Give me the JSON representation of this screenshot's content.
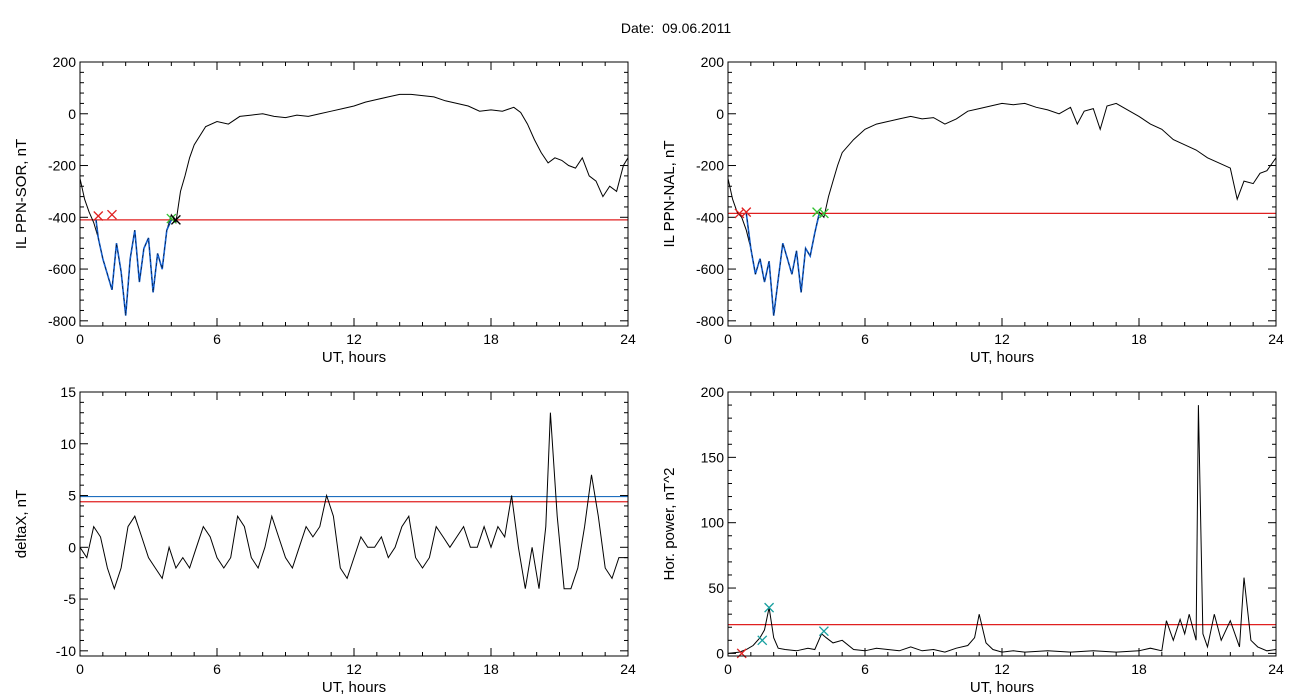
{
  "figure": {
    "date_title": "Date:  09.06.2011"
  },
  "colors": {
    "trace": "#000000",
    "threshold_red": "#e02020",
    "threshold_blue": "#1f6fbf",
    "highlight_blue": "#1560d0",
    "marker_red": "#e02020",
    "marker_green": "#30c030",
    "marker_cyan": "#18a0a0"
  },
  "chart_data": [
    {
      "id": "ppn-sor",
      "type": "line",
      "xlabel": "UT, hours",
      "ylabel": "IL PPN-SOR, nT",
      "xlim": [
        0,
        24
      ],
      "ylim": [
        -820,
        200
      ],
      "xticks": [
        0,
        6,
        12,
        18,
        24
      ],
      "yticks": [
        -800,
        -600,
        -400,
        -200,
        0,
        200
      ],
      "thresholds": [
        {
          "value": -410,
          "color": "red"
        }
      ],
      "series": [
        {
          "color": "black",
          "x": [
            0,
            0.2,
            0.4,
            0.6,
            0.8,
            1.0,
            1.2,
            1.4,
            1.6,
            1.8,
            2.0,
            2.2,
            2.4,
            2.6,
            2.8,
            3.0,
            3.2,
            3.4,
            3.6,
            3.8,
            4.0,
            4.2,
            4.4,
            4.6,
            4.8,
            5.0,
            5.5,
            6.0,
            6.5,
            7.0,
            7.5,
            8.0,
            8.5,
            9.0,
            9.5,
            10.0,
            10.5,
            11.0,
            11.5,
            12.0,
            12.5,
            13.0,
            13.5,
            14.0,
            14.5,
            15.0,
            15.5,
            16.0,
            16.5,
            17.0,
            17.5,
            18.0,
            18.5,
            19.0,
            19.3,
            19.6,
            19.9,
            20.2,
            20.5,
            20.8,
            21.1,
            21.4,
            21.7,
            22.0,
            22.3,
            22.6,
            22.9,
            23.2,
            23.5,
            23.8,
            24.0
          ],
          "values": [
            -250,
            -330,
            -380,
            -420,
            -480,
            -560,
            -620,
            -680,
            -500,
            -610,
            -780,
            -560,
            -450,
            -650,
            -520,
            -480,
            -690,
            -540,
            -600,
            -450,
            -390,
            -420,
            -300,
            -240,
            -170,
            -120,
            -50,
            -30,
            -40,
            -10,
            -5,
            0,
            -10,
            -15,
            -5,
            -10,
            0,
            10,
            20,
            30,
            45,
            55,
            65,
            75,
            75,
            70,
            65,
            50,
            40,
            30,
            10,
            15,
            10,
            25,
            5,
            -40,
            -100,
            -150,
            -190,
            -170,
            -180,
            -200,
            -210,
            -170,
            -240,
            -260,
            -320,
            -280,
            -300,
            -200,
            -170
          ]
        },
        {
          "name": "",
          "color": "blue",
          "x": [
            0.7,
            0.8,
            1.0,
            1.2,
            1.4,
            1.6,
            1.8,
            2.0,
            2.2,
            2.4,
            2.6,
            2.8,
            3.0,
            3.2,
            3.4,
            3.6,
            3.8,
            4.0
          ],
          "values": [
            -410,
            -480,
            -560,
            -620,
            -680,
            -500,
            -610,
            -780,
            -560,
            -450,
            -650,
            -520,
            -480,
            -690,
            -540,
            -600,
            -450,
            -410
          ]
        }
      ],
      "markers": [
        {
          "x": 0.8,
          "y": -395,
          "color": "red"
        },
        {
          "x": 1.4,
          "y": -390,
          "color": "red"
        },
        {
          "x": 4.0,
          "y": -405,
          "color": "green"
        },
        {
          "x": 4.2,
          "y": -410,
          "color": "black"
        }
      ]
    },
    {
      "id": "ppn-nal",
      "type": "line",
      "xlabel": "UT, hours",
      "ylabel": "IL PPN-NAL, nT",
      "xlim": [
        0,
        24
      ],
      "ylim": [
        -820,
        200
      ],
      "xticks": [
        0,
        6,
        12,
        18,
        24
      ],
      "yticks": [
        -800,
        -600,
        -400,
        -200,
        0,
        200
      ],
      "thresholds": [
        {
          "value": -385,
          "color": "red"
        }
      ],
      "series": [
        {
          "color": "black",
          "x": [
            0,
            0.2,
            0.4,
            0.6,
            0.8,
            1.0,
            1.2,
            1.4,
            1.6,
            1.8,
            2.0,
            2.2,
            2.4,
            2.6,
            2.8,
            3.0,
            3.2,
            3.4,
            3.6,
            3.8,
            4.0,
            4.2,
            4.4,
            4.6,
            4.8,
            5.0,
            5.5,
            6.0,
            6.5,
            7.0,
            7.5,
            8.0,
            8.5,
            9.0,
            9.5,
            10.0,
            10.5,
            11.0,
            11.5,
            12.0,
            12.5,
            13.0,
            13.5,
            14.0,
            14.5,
            15.0,
            15.3,
            15.6,
            16.0,
            16.3,
            16.6,
            17.0,
            17.5,
            18.0,
            18.5,
            19.0,
            19.5,
            20.0,
            20.5,
            21.0,
            21.5,
            22.0,
            22.3,
            22.6,
            23.0,
            23.3,
            23.6,
            24.0
          ],
          "values": [
            -250,
            -330,
            -380,
            -400,
            -450,
            -520,
            -620,
            -560,
            -650,
            -570,
            -780,
            -640,
            -500,
            -560,
            -620,
            -530,
            -690,
            -520,
            -550,
            -460,
            -380,
            -400,
            -320,
            -260,
            -200,
            -150,
            -100,
            -60,
            -40,
            -30,
            -20,
            -10,
            -20,
            -15,
            -40,
            -20,
            10,
            20,
            30,
            40,
            35,
            40,
            25,
            15,
            0,
            25,
            -40,
            10,
            20,
            -60,
            30,
            40,
            15,
            -10,
            -40,
            -60,
            -100,
            -120,
            -140,
            -170,
            -190,
            -210,
            -330,
            -260,
            -270,
            -230,
            -220,
            -170
          ]
        },
        {
          "name": "",
          "color": "blue",
          "x": [
            0.8,
            1.0,
            1.2,
            1.4,
            1.6,
            1.8,
            2.0,
            2.2,
            2.4,
            2.6,
            2.8,
            3.0,
            3.2,
            3.4,
            3.6,
            3.8,
            4.0
          ],
          "values": [
            -385,
            -520,
            -620,
            -560,
            -650,
            -570,
            -780,
            -640,
            -500,
            -560,
            -620,
            -530,
            -690,
            -520,
            -550,
            -460,
            -385
          ]
        }
      ],
      "markers": [
        {
          "x": 0.5,
          "y": -385,
          "color": "red"
        },
        {
          "x": 0.8,
          "y": -380,
          "color": "red"
        },
        {
          "x": 3.9,
          "y": -380,
          "color": "green"
        },
        {
          "x": 4.2,
          "y": -385,
          "color": "green"
        }
      ]
    },
    {
      "id": "deltax",
      "type": "line",
      "xlabel": "UT, hours",
      "ylabel": "deltaX, nT",
      "xlim": [
        0,
        24
      ],
      "ylim": [
        -10.5,
        15
      ],
      "xticks": [
        0,
        6,
        12,
        18,
        24
      ],
      "yticks": [
        -10,
        -5,
        0,
        5,
        10,
        15
      ],
      "thresholds": [
        {
          "value": 4.9,
          "color": "blue"
        },
        {
          "value": 4.4,
          "color": "red"
        }
      ],
      "series": [
        {
          "color": "black",
          "x": [
            0,
            0.3,
            0.6,
            0.9,
            1.2,
            1.5,
            1.8,
            2.1,
            2.4,
            2.7,
            3.0,
            3.3,
            3.6,
            3.9,
            4.2,
            4.5,
            4.8,
            5.1,
            5.4,
            5.7,
            6.0,
            6.3,
            6.6,
            6.9,
            7.2,
            7.5,
            7.8,
            8.1,
            8.4,
            8.7,
            9.0,
            9.3,
            9.6,
            9.9,
            10.2,
            10.5,
            10.8,
            11.1,
            11.4,
            11.7,
            12.0,
            12.3,
            12.6,
            12.9,
            13.2,
            13.5,
            13.8,
            14.1,
            14.4,
            14.7,
            15.0,
            15.3,
            15.6,
            15.9,
            16.2,
            16.5,
            16.8,
            17.1,
            17.4,
            17.7,
            18.0,
            18.3,
            18.6,
            18.9,
            19.2,
            19.5,
            19.8,
            20.1,
            20.4,
            20.6,
            20.9,
            21.2,
            21.5,
            21.8,
            22.1,
            22.4,
            22.7,
            23.0,
            23.3,
            23.6,
            24.0
          ],
          "values": [
            0,
            -1,
            2,
            1,
            -2,
            -4,
            -2,
            2,
            3,
            1,
            -1,
            -2,
            -3,
            0,
            -2,
            -1,
            -2,
            0,
            2,
            1,
            -1,
            -2,
            -1,
            3,
            2,
            -1,
            -2,
            0,
            3,
            1,
            -1,
            -2,
            0,
            2,
            1,
            2,
            5,
            3,
            -2,
            -3,
            -1,
            1,
            0,
            0,
            1,
            -1,
            0,
            2,
            3,
            -1,
            -2,
            -1,
            2,
            1,
            0,
            1,
            2,
            0,
            0,
            2,
            0,
            2,
            1,
            5,
            0,
            -4,
            0,
            -4,
            2,
            13,
            3,
            -4,
            -4,
            -2,
            2,
            7,
            3,
            -2,
            -3,
            -1,
            -1
          ]
        }
      ]
    },
    {
      "id": "hor-power",
      "type": "line",
      "xlabel": "UT, hours",
      "ylabel": "Hor. power, nT^2",
      "xlim": [
        0,
        24
      ],
      "ylim": [
        -2,
        200
      ],
      "xticks": [
        0,
        6,
        12,
        18,
        24
      ],
      "yticks": [
        0,
        50,
        100,
        150,
        200
      ],
      "thresholds": [
        {
          "value": 22,
          "color": "red"
        }
      ],
      "series": [
        {
          "color": "black",
          "x": [
            0,
            0.5,
            0.8,
            1.1,
            1.4,
            1.6,
            1.8,
            2.0,
            2.2,
            2.5,
            3.0,
            3.5,
            3.8,
            4.1,
            4.3,
            4.6,
            5.0,
            5.5,
            6.0,
            6.5,
            7.0,
            7.5,
            8.0,
            8.5,
            9.0,
            9.5,
            10.0,
            10.5,
            10.8,
            11.0,
            11.3,
            11.6,
            12.0,
            12.5,
            13.0,
            14.0,
            15.0,
            16.0,
            17.0,
            18.0,
            18.5,
            19.0,
            19.2,
            19.5,
            19.8,
            20.0,
            20.2,
            20.5,
            20.6,
            20.8,
            21.0,
            21.3,
            21.6,
            22.0,
            22.4,
            22.6,
            22.9,
            23.2,
            23.6,
            24.0
          ],
          "values": [
            0,
            1,
            3,
            6,
            12,
            18,
            35,
            12,
            4,
            3,
            2,
            4,
            3,
            15,
            12,
            8,
            10,
            3,
            2,
            4,
            3,
            2,
            5,
            2,
            3,
            1,
            4,
            6,
            12,
            30,
            8,
            3,
            1,
            2,
            1,
            2,
            1,
            2,
            1,
            2,
            4,
            2,
            25,
            10,
            26,
            15,
            30,
            10,
            190,
            15,
            5,
            30,
            10,
            25,
            5,
            58,
            10,
            5,
            2,
            3
          ]
        }
      ],
      "markers": [
        {
          "x": 0.6,
          "y": 0,
          "color": "red"
        },
        {
          "x": 1.5,
          "y": 10,
          "color": "cyan"
        },
        {
          "x": 1.8,
          "y": 35,
          "color": "cyan"
        },
        {
          "x": 4.2,
          "y": 17,
          "color": "cyan"
        }
      ]
    }
  ]
}
